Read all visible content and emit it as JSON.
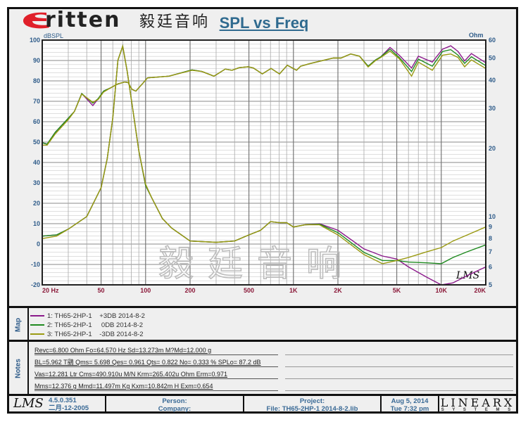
{
  "title": "SPL vs Freq",
  "logo": {
    "brand": "ritten",
    "brand_initial": "E",
    "chinese": "毅廷音响"
  },
  "watermark": "毅廷音响",
  "signature": "LMS",
  "colors": {
    "purple": "#8b1a8b",
    "green": "#1f8a1f",
    "olive": "#9a9a12",
    "axis_text": "#2f5c8a",
    "freq_text": "#8b1a3a"
  },
  "chart_data": {
    "type": "line",
    "title": "SPL vs Freq",
    "xlabel": "Hz",
    "ylabel": "dBSPL",
    "y2label": "Ohm",
    "xscale": "log",
    "xlim": [
      20,
      20000
    ],
    "ylim": [
      -20,
      100
    ],
    "y2lim": [
      5,
      60
    ],
    "y2scale": "log",
    "grid": true,
    "x_ticks": [
      {
        "v": 20,
        "label": "20  Hz"
      },
      {
        "v": 50,
        "label": "50"
      },
      {
        "v": 100,
        "label": "100"
      },
      {
        "v": 200,
        "label": "200"
      },
      {
        "v": 500,
        "label": "500"
      },
      {
        "v": 1000,
        "label": "1K"
      },
      {
        "v": 2000,
        "label": "2K"
      },
      {
        "v": 5000,
        "label": "5K"
      },
      {
        "v": 10000,
        "label": "10K"
      },
      {
        "v": 20000,
        "label": "20K"
      }
    ],
    "y_ticks": [
      "100",
      "90",
      "80",
      "70",
      "60",
      "50",
      "40",
      "30",
      "20",
      "10",
      "0",
      "-10",
      "-20"
    ],
    "y2_ticks": [
      "60",
      "50",
      "40",
      "30",
      "20",
      "10",
      "9",
      "8",
      "7",
      "6",
      "5"
    ],
    "spl_freq": [
      20,
      21.6,
      24.5,
      30,
      33,
      37,
      44,
      48,
      52,
      58,
      65,
      72,
      76,
      81,
      86,
      96,
      103,
      144,
      206,
      241,
      290,
      346,
      384,
      430,
      494,
      536,
      616,
      706,
      805,
      909,
      1050,
      1120,
      1285,
      1540,
      1860,
      2100,
      2440,
      2800,
      3200,
      3600,
      3900,
      4500,
      5200,
      6300,
      7000,
      8700,
      10200,
      11600,
      13000,
      14400,
      16000,
      20000
    ],
    "imp_freq": [
      20,
      25,
      30,
      40,
      50,
      55,
      60,
      65,
      70,
      75,
      80,
      90,
      100,
      110,
      130,
      150,
      200,
      300,
      400,
      500,
      600,
      700,
      800,
      900,
      1000,
      1200,
      1500,
      2000,
      3000,
      4000,
      5000,
      6000,
      8000,
      10000,
      12000,
      15000,
      20000
    ],
    "series": [
      {
        "name": "1: TH65-2HP-1    +3DB 2014-8-2",
        "color": "#8b1a8b",
        "spl": [
          49.7,
          49,
          54.8,
          61.7,
          65,
          73.8,
          67.9,
          71.4,
          75,
          76.6,
          78.5,
          79.4,
          79.2,
          75.8,
          75,
          78.9,
          81.5,
          82.3,
          85.4,
          84.6,
          82.3,
          85.8,
          85.2,
          86.5,
          86.9,
          86.3,
          83.4,
          86.1,
          83.4,
          87.7,
          85.2,
          87.2,
          88.4,
          89.8,
          91.2,
          91.2,
          93.2,
          92.1,
          87.2,
          90.3,
          91.8,
          96.4,
          92.6,
          86.3,
          92.1,
          89.2,
          95.5,
          97.2,
          94.4,
          89.8,
          93.4,
          88.9
        ],
        "impedance": [
          8.2,
          8.3,
          8.8,
          10.0,
          13.4,
          18.0,
          27.2,
          48.9,
          56.4,
          44.0,
          33.1,
          19.5,
          13.7,
          12.1,
          9.8,
          8.9,
          7.8,
          7.7,
          7.8,
          8.3,
          8.7,
          9.5,
          9.4,
          9.4,
          9.0,
          9.2,
          9.3,
          8.7,
          7.2,
          6.7,
          6.5,
          6.0,
          5.4,
          5.0,
          5.1,
          5.5,
          6.0
        ]
      },
      {
        "name": "2: TH65-2HP-1     0DB 2014-8-2",
        "color": "#1f8a1f",
        "spl": [
          49.7,
          49,
          54.8,
          61.7,
          65,
          73.8,
          69.1,
          71.4,
          75,
          76.6,
          78.5,
          79.4,
          79.2,
          75.8,
          75,
          78.9,
          81.5,
          82.3,
          85.4,
          84.6,
          82.3,
          85.8,
          85.2,
          86.5,
          86.9,
          86.3,
          83.4,
          86.1,
          83.4,
          87.7,
          85.2,
          87.2,
          88.4,
          89.8,
          91.2,
          91.2,
          93.2,
          92.1,
          87.2,
          90.3,
          91.8,
          95.5,
          91.5,
          84.6,
          90.7,
          87.2,
          94.4,
          95.3,
          92.6,
          88.6,
          91.8,
          87.5
        ],
        "impedance": [
          8.2,
          8.3,
          8.8,
          10.0,
          13.4,
          18.0,
          27.2,
          48.9,
          56.4,
          44.0,
          33.1,
          19.5,
          13.7,
          12.1,
          9.8,
          8.9,
          7.8,
          7.7,
          7.8,
          8.3,
          8.7,
          9.5,
          9.4,
          9.4,
          9.0,
          9.2,
          9.26,
          8.5,
          6.95,
          6.4,
          6.4,
          6.3,
          6.25,
          6.2,
          6.6,
          7.0,
          7.5
        ]
      },
      {
        "name": "3: TH65-2HP-1    -3DB 2014-8-2",
        "color": "#9a9a12",
        "spl": [
          48.5,
          48.5,
          54,
          61,
          65,
          73.5,
          69.5,
          71,
          74.5,
          76.6,
          78.5,
          79.4,
          79.2,
          75.8,
          75,
          78.9,
          81.5,
          82.3,
          85.2,
          84.6,
          82.3,
          85.8,
          85.2,
          86.5,
          86.9,
          86.3,
          83.4,
          86.1,
          83.4,
          87.7,
          85.2,
          87.2,
          88.4,
          89.8,
          91.2,
          91.2,
          93.2,
          92.1,
          86.8,
          90,
          91.5,
          94.6,
          90.9,
          82.3,
          89.2,
          85.2,
          92.6,
          93.2,
          91.5,
          86.9,
          90.3,
          86.1
        ],
        "impedance": [
          8.0,
          8.2,
          8.8,
          10.0,
          13.4,
          18.0,
          27.2,
          48.9,
          56.4,
          44.0,
          33.1,
          19.5,
          13.9,
          12.1,
          9.8,
          8.9,
          7.8,
          7.7,
          7.8,
          8.3,
          8.7,
          9.5,
          9.4,
          9.4,
          9.0,
          9.2,
          9.2,
          8.3,
          6.8,
          6.2,
          6.4,
          6.6,
          7.0,
          7.3,
          7.8,
          8.3,
          9.0
        ]
      }
    ]
  },
  "map": {
    "label": "Map",
    "items": [
      "1: TH65-2HP-1    +3DB 2014-8-2",
      "2: TH65-2HP-1     0DB 2014-8-2",
      "3: TH65-2HP-1    -3DB 2014-8-2"
    ]
  },
  "notes": {
    "label": "Notes",
    "lines": [
      "Revc=6.800 Ohm  Fo=64.570 Hz  Sd=13.273m M?Md=12.000 g",
      "BL=5.962 T鷂  Qms= 5.698  Qes= 0.961  Qts= 0.822  No= 0.333 %  SPLo= 87.2 dB",
      "Vas=12.281 Ltr  Cms=490.910u M/N  Krm=265.402u Ohm  Erm=0.971",
      "Mms=12.376 g  Mmd=11.497m Kg  Kxm=10.842m H  Exm=0.654"
    ]
  },
  "footer": {
    "lms_logo": "LMS",
    "version": "4.5.0.351",
    "build_date": "二月-12-2005",
    "person_label": "Person:",
    "company_label": "Company:",
    "project_label": "Project:",
    "file": "File: TH65-2HP-1   2014-8-2.lib",
    "date": "Aug  5, 2014",
    "time": "Tue  7:32 pm",
    "brand": "LINEARX",
    "brand_sub": "S Y S T E M S"
  }
}
